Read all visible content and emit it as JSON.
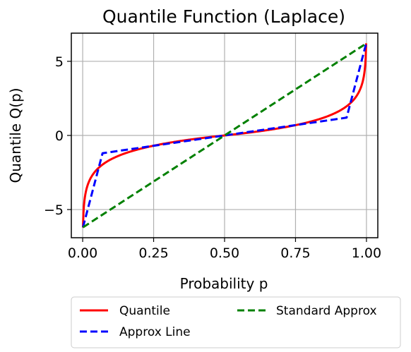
{
  "chart_data": {
    "type": "line",
    "title": "Quantile Function (Laplace)",
    "xlabel": "Probability p",
    "ylabel": "Quantile Q(p)",
    "xlim": [
      -0.04,
      1.04
    ],
    "ylim": [
      -6.9,
      6.9
    ],
    "xticks": [
      0.0,
      0.25,
      0.5,
      0.75,
      1.0
    ],
    "xtick_labels": [
      "0.00",
      "0.25",
      "0.50",
      "0.75",
      "1.00"
    ],
    "yticks": [
      -5,
      0,
      5
    ],
    "ytick_labels": [
      "−5",
      "0",
      "5"
    ],
    "grid": true,
    "legend_position": "below",
    "series": [
      {
        "name": "Quantile",
        "color": "#ff0000",
        "style": "solid",
        "function": "laplace_quantile",
        "p_range": [
          0.001,
          0.999
        ]
      },
      {
        "name": "Approx Line",
        "color": "#0000ff",
        "style": "dashed",
        "x": [
          0.001,
          0.07,
          0.5,
          0.93,
          0.999
        ],
        "y": [
          -6.2,
          -1.2,
          0.0,
          1.2,
          6.2
        ]
      },
      {
        "name": "Standard Approx",
        "color": "#008000",
        "style": "dashed",
        "x": [
          0.001,
          0.999
        ],
        "y": [
          -6.2,
          6.2
        ]
      }
    ]
  }
}
